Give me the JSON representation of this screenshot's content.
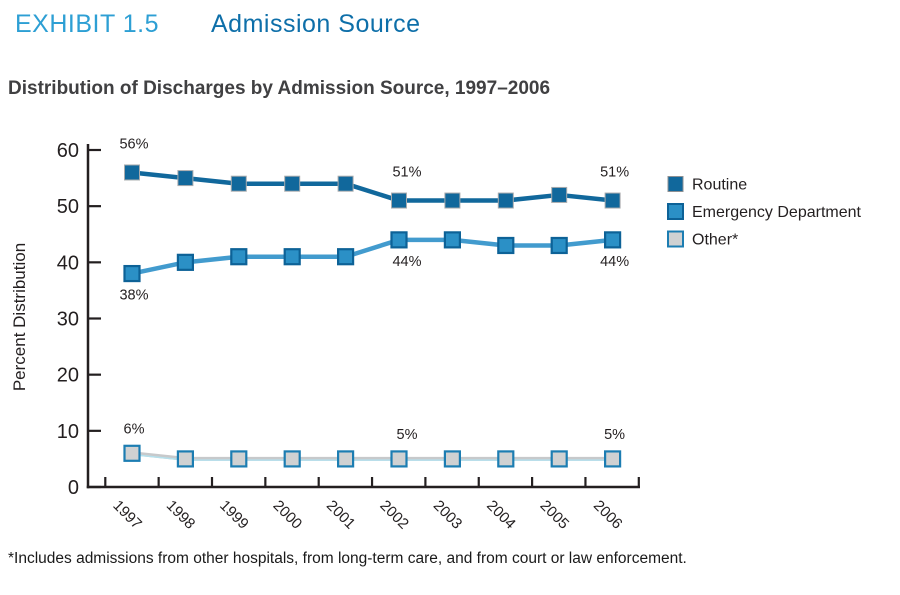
{
  "header": {
    "exhibit_label": "EXHIBIT 1.5",
    "exhibit_title": "Admission Source"
  },
  "subtitle": "Distribution of Discharges by Admission Source, 1997–2006",
  "footnote": "*Includes admissions from other hospitals, from long-term care, and from court or law enforcement.",
  "colors": {
    "exhibit_label_blue": "#2d9fd4",
    "exhibit_title_blue": "#0e6fa9",
    "subtitle_gray": "#404042",
    "axis_ink": "#231f20",
    "routine_blue": "#11689c",
    "emergency_blue": "#2b90c6",
    "other_gray": "#c7c9cb"
  },
  "chart_data": {
    "type": "line",
    "title": "Distribution of Discharges by Admission Source, 1997–2006",
    "categories": [
      "1997",
      "1998",
      "1999",
      "2000",
      "2001",
      "2002",
      "2003",
      "2004",
      "2005",
      "2006"
    ],
    "series": [
      {
        "name": "Routine",
        "values": [
          56,
          55,
          54,
          54,
          54,
          51,
          51,
          51,
          52,
          51
        ],
        "line_color": "#11689c",
        "marker_fill": "#11689c",
        "marker_border": "#a9abad"
      },
      {
        "name": "Emergency Department",
        "values": [
          38,
          40,
          41,
          41,
          41,
          44,
          44,
          43,
          43,
          44
        ],
        "line_color": "#429bce",
        "marker_fill": "#2b90c6",
        "marker_border": "#0d6297"
      },
      {
        "name": "Other*",
        "values": [
          6,
          5,
          5,
          5,
          5,
          5,
          5,
          5,
          5,
          5
        ],
        "line_color": "#c7c9cb",
        "line_accent": "#b5e0ec",
        "marker_fill": "#cfd1d2",
        "marker_border": "#1c7db2"
      }
    ],
    "ylabel": "Percent Distribution",
    "xlabel": "",
    "ylim": [
      0,
      60
    ],
    "yticks": [
      0,
      10,
      20,
      30,
      40,
      50,
      60
    ],
    "grid": false,
    "marker": "square",
    "legend_position": "right",
    "annotations": [
      {
        "series": 0,
        "index": 0,
        "text": "56%",
        "placement": "above"
      },
      {
        "series": 0,
        "index": 5,
        "text": "51%",
        "placement": "above"
      },
      {
        "series": 0,
        "index": 9,
        "text": "51%",
        "placement": "above"
      },
      {
        "series": 1,
        "index": 0,
        "text": "38%",
        "placement": "below"
      },
      {
        "series": 1,
        "index": 5,
        "text": "44%",
        "placement": "below"
      },
      {
        "series": 1,
        "index": 9,
        "text": "44%",
        "placement": "below"
      },
      {
        "series": 2,
        "index": 0,
        "text": "6%",
        "placement": "above"
      },
      {
        "series": 2,
        "index": 5,
        "text": "5%",
        "placement": "above"
      },
      {
        "series": 2,
        "index": 9,
        "text": "5%",
        "placement": "above"
      }
    ]
  }
}
